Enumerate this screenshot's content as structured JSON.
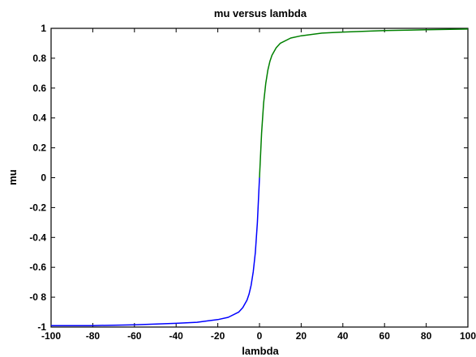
{
  "chart_data": {
    "type": "line",
    "title": "mu versus lambda",
    "xlabel": "lambda",
    "ylabel": "mu",
    "xlim": [
      -100,
      100
    ],
    "ylim": [
      -1,
      1
    ],
    "grid": false,
    "x_ticks": [
      -100,
      -80,
      -60,
      -40,
      -20,
      0,
      20,
      40,
      60,
      80,
      100
    ],
    "x_tick_labels": [
      "-100",
      "-80",
      "-60",
      "-40",
      "-20",
      "0",
      "20",
      "40",
      "60",
      "80",
      "100"
    ],
    "y_ticks": [
      -1,
      -0.8,
      -0.6,
      -0.4,
      -0.2,
      0,
      0.2,
      0.4,
      0.6,
      0.8,
      1
    ],
    "y_tick_labels": [
      "-1",
      "-0 8",
      "-0.6",
      "-0.4",
      "-0.2",
      "0",
      "0.2",
      "0.4",
      "0.6",
      "0.8",
      "1"
    ],
    "series": [
      {
        "color": "#0000ff",
        "x": [
          -100,
          -80,
          -60,
          -40,
          -30,
          -20,
          -15,
          -10,
          -8,
          -6,
          -5,
          -4,
          -3,
          -2,
          -1,
          0
        ],
        "y": [
          -0.99,
          -0.99,
          -0.985,
          -0.975,
          -0.968,
          -0.95,
          -0.935,
          -0.9,
          -0.87,
          -0.82,
          -0.78,
          -0.72,
          -0.63,
          -0.5,
          -0.3,
          0
        ]
      },
      {
        "color": "#008000",
        "x": [
          0,
          1,
          2,
          3,
          4,
          5,
          6,
          8,
          10,
          15,
          20,
          30,
          40,
          60,
          80,
          100
        ],
        "y": [
          0,
          0.3,
          0.5,
          0.63,
          0.72,
          0.78,
          0.82,
          0.87,
          0.9,
          0.935,
          0.95,
          0.968,
          0.975,
          0.985,
          0.99,
          0.995
        ]
      }
    ]
  }
}
